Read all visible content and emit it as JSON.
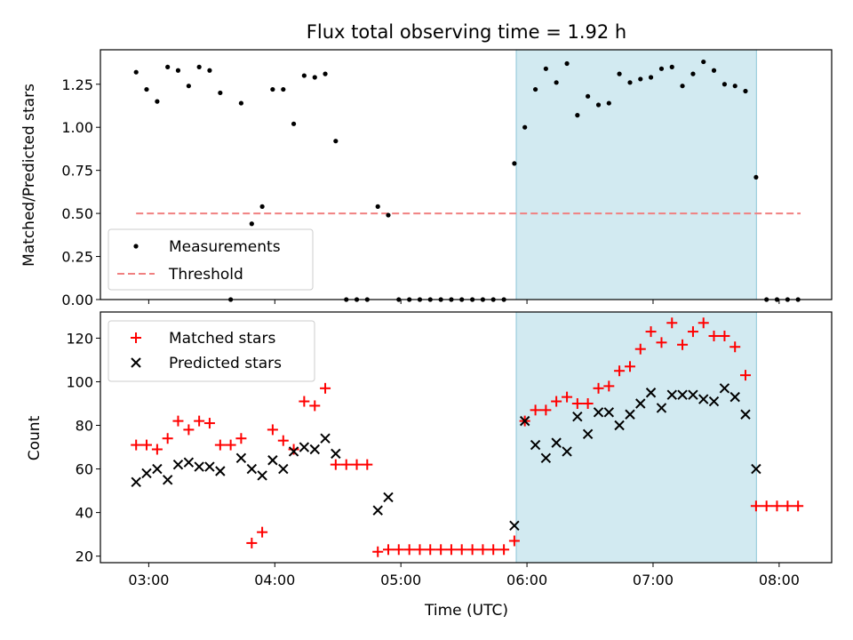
{
  "figure": {
    "title": "Flux total observing time = 1.92 h",
    "shade_color": "#add8e6",
    "shade_interval": [
      5.915,
      7.82
    ]
  },
  "chart_data": [
    {
      "type": "scatter",
      "name": "top-panel",
      "ylabel": "Matched/Predicted stars",
      "xlabel": "",
      "xlim": [
        2.6167,
        8.4167
      ],
      "ylim": [
        0,
        1.45
      ],
      "yticks": [
        0.0,
        0.25,
        0.5,
        0.75,
        1.0,
        1.25
      ],
      "ytick_labels": [
        "0.00",
        "0.25",
        "0.50",
        "0.75",
        "1.00",
        "1.25"
      ],
      "xticks": [
        3,
        4,
        5,
        6,
        7,
        8
      ],
      "show_xtick_labels": false,
      "legend": {
        "placement": "lower-left",
        "entries": [
          "Measurements",
          "Threshold"
        ]
      },
      "threshold": {
        "name": "Threshold",
        "value": 0.5,
        "x_range": [
          2.9,
          8.17
        ],
        "color": "#f08080",
        "style": "dashed"
      },
      "series": [
        {
          "name": "Measurements",
          "color": "#000000",
          "marker": "dot",
          "points": [
            [
              2.9,
              1.32
            ],
            [
              2.983,
              1.22
            ],
            [
              3.067,
              1.15
            ],
            [
              3.15,
              1.35
            ],
            [
              3.233,
              1.33
            ],
            [
              3.317,
              1.24
            ],
            [
              3.4,
              1.35
            ],
            [
              3.483,
              1.33
            ],
            [
              3.567,
              1.2
            ],
            [
              3.65,
              0.0
            ],
            [
              3.733,
              1.14
            ],
            [
              3.817,
              0.44
            ],
            [
              3.9,
              0.54
            ],
            [
              3.983,
              1.22
            ],
            [
              4.067,
              1.22
            ],
            [
              4.15,
              1.02
            ],
            [
              4.233,
              1.3
            ],
            [
              4.317,
              1.29
            ],
            [
              4.4,
              1.31
            ],
            [
              4.483,
              0.92
            ],
            [
              4.567,
              0.0
            ],
            [
              4.65,
              0.0
            ],
            [
              4.733,
              0.0
            ],
            [
              4.817,
              0.54
            ],
            [
              4.9,
              0.49
            ],
            [
              4.983,
              0.0
            ],
            [
              5.067,
              0.0
            ],
            [
              5.15,
              0.0
            ],
            [
              5.233,
              0.0
            ],
            [
              5.317,
              0.0
            ],
            [
              5.4,
              0.0
            ],
            [
              5.483,
              0.0
            ],
            [
              5.567,
              0.0
            ],
            [
              5.65,
              0.0
            ],
            [
              5.733,
              0.0
            ],
            [
              5.817,
              0.0
            ],
            [
              5.9,
              0.79
            ],
            [
              5.983,
              1.0
            ],
            [
              6.067,
              1.22
            ],
            [
              6.15,
              1.34
            ],
            [
              6.233,
              1.26
            ],
            [
              6.317,
              1.37
            ],
            [
              6.4,
              1.07
            ],
            [
              6.483,
              1.18
            ],
            [
              6.567,
              1.13
            ],
            [
              6.65,
              1.14
            ],
            [
              6.733,
              1.31
            ],
            [
              6.817,
              1.26
            ],
            [
              6.9,
              1.28
            ],
            [
              6.983,
              1.29
            ],
            [
              7.067,
              1.34
            ],
            [
              7.15,
              1.35
            ],
            [
              7.233,
              1.24
            ],
            [
              7.317,
              1.31
            ],
            [
              7.4,
              1.38
            ],
            [
              7.483,
              1.33
            ],
            [
              7.567,
              1.25
            ],
            [
              7.65,
              1.24
            ],
            [
              7.733,
              1.21
            ],
            [
              7.817,
              0.71
            ],
            [
              7.9,
              0.0
            ],
            [
              7.983,
              0.0
            ],
            [
              8.067,
              0.0
            ],
            [
              8.15,
              0.0
            ]
          ]
        }
      ]
    },
    {
      "type": "scatter",
      "name": "bottom-panel",
      "ylabel": "Count",
      "xlabel": "Time (UTC)",
      "xlim": [
        2.6167,
        8.4167
      ],
      "ylim": [
        17,
        132
      ],
      "yticks": [
        20,
        40,
        60,
        80,
        100,
        120
      ],
      "ytick_labels": [
        "20",
        "40",
        "60",
        "80",
        "100",
        "120"
      ],
      "xticks": [
        3,
        4,
        5,
        6,
        7,
        8
      ],
      "xtick_labels": [
        "03:00",
        "04:00",
        "05:00",
        "06:00",
        "07:00",
        "08:00"
      ],
      "show_xtick_labels": true,
      "legend": {
        "placement": "top-left",
        "entries": [
          "Matched stars",
          "Predicted stars"
        ]
      },
      "series": [
        {
          "name": "Matched stars",
          "color": "#ff0000",
          "marker": "plus",
          "points": [
            [
              2.9,
              71
            ],
            [
              2.983,
              71
            ],
            [
              3.067,
              69
            ],
            [
              3.15,
              74
            ],
            [
              3.233,
              82
            ],
            [
              3.317,
              78
            ],
            [
              3.4,
              82
            ],
            [
              3.483,
              81
            ],
            [
              3.567,
              71
            ],
            [
              3.65,
              71
            ],
            [
              3.733,
              74
            ],
            [
              3.817,
              26
            ],
            [
              3.9,
              31
            ],
            [
              3.983,
              78
            ],
            [
              4.067,
              73
            ],
            [
              4.15,
              69
            ],
            [
              4.233,
              91
            ],
            [
              4.317,
              89
            ],
            [
              4.4,
              97
            ],
            [
              4.483,
              62
            ],
            [
              4.567,
              62
            ],
            [
              4.65,
              62
            ],
            [
              4.733,
              62
            ],
            [
              4.817,
              22
            ],
            [
              4.9,
              23
            ],
            [
              4.983,
              23
            ],
            [
              5.067,
              23
            ],
            [
              5.15,
              23
            ],
            [
              5.233,
              23
            ],
            [
              5.317,
              23
            ],
            [
              5.4,
              23
            ],
            [
              5.483,
              23
            ],
            [
              5.567,
              23
            ],
            [
              5.65,
              23
            ],
            [
              5.733,
              23
            ],
            [
              5.817,
              23
            ],
            [
              5.9,
              27
            ],
            [
              5.983,
              82
            ],
            [
              6.067,
              87
            ],
            [
              6.15,
              87
            ],
            [
              6.233,
              91
            ],
            [
              6.317,
              93
            ],
            [
              6.4,
              90
            ],
            [
              6.483,
              90
            ],
            [
              6.567,
              97
            ],
            [
              6.65,
              98
            ],
            [
              6.733,
              105
            ],
            [
              6.817,
              107
            ],
            [
              6.9,
              115
            ],
            [
              6.983,
              123
            ],
            [
              7.067,
              118
            ],
            [
              7.15,
              127
            ],
            [
              7.233,
              117
            ],
            [
              7.317,
              123
            ],
            [
              7.4,
              127
            ],
            [
              7.483,
              121
            ],
            [
              7.567,
              121
            ],
            [
              7.65,
              116
            ],
            [
              7.733,
              103
            ],
            [
              7.817,
              43
            ],
            [
              7.9,
              43
            ],
            [
              7.983,
              43
            ],
            [
              8.067,
              43
            ],
            [
              8.15,
              43
            ]
          ]
        },
        {
          "name": "Predicted stars",
          "color": "#000000",
          "marker": "x",
          "points": [
            [
              2.9,
              54
            ],
            [
              2.983,
              58
            ],
            [
              3.067,
              60
            ],
            [
              3.15,
              55
            ],
            [
              3.233,
              62
            ],
            [
              3.317,
              63
            ],
            [
              3.4,
              61
            ],
            [
              3.483,
              61
            ],
            [
              3.567,
              59
            ],
            [
              3.733,
              65
            ],
            [
              3.817,
              60
            ],
            [
              3.9,
              57
            ],
            [
              3.983,
              64
            ],
            [
              4.067,
              60
            ],
            [
              4.15,
              68
            ],
            [
              4.233,
              70
            ],
            [
              4.317,
              69
            ],
            [
              4.4,
              74
            ],
            [
              4.483,
              67
            ],
            [
              4.817,
              41
            ],
            [
              4.9,
              47
            ],
            [
              5.9,
              34
            ],
            [
              5.983,
              82
            ],
            [
              6.067,
              71
            ],
            [
              6.15,
              65
            ],
            [
              6.233,
              72
            ],
            [
              6.317,
              68
            ],
            [
              6.4,
              84
            ],
            [
              6.483,
              76
            ],
            [
              6.567,
              86
            ],
            [
              6.65,
              86
            ],
            [
              6.733,
              80
            ],
            [
              6.817,
              85
            ],
            [
              6.9,
              90
            ],
            [
              6.983,
              95
            ],
            [
              7.067,
              88
            ],
            [
              7.15,
              94
            ],
            [
              7.233,
              94
            ],
            [
              7.317,
              94
            ],
            [
              7.4,
              92
            ],
            [
              7.483,
              91
            ],
            [
              7.567,
              97
            ],
            [
              7.65,
              93
            ],
            [
              7.733,
              85
            ],
            [
              7.817,
              60
            ]
          ]
        }
      ]
    }
  ]
}
